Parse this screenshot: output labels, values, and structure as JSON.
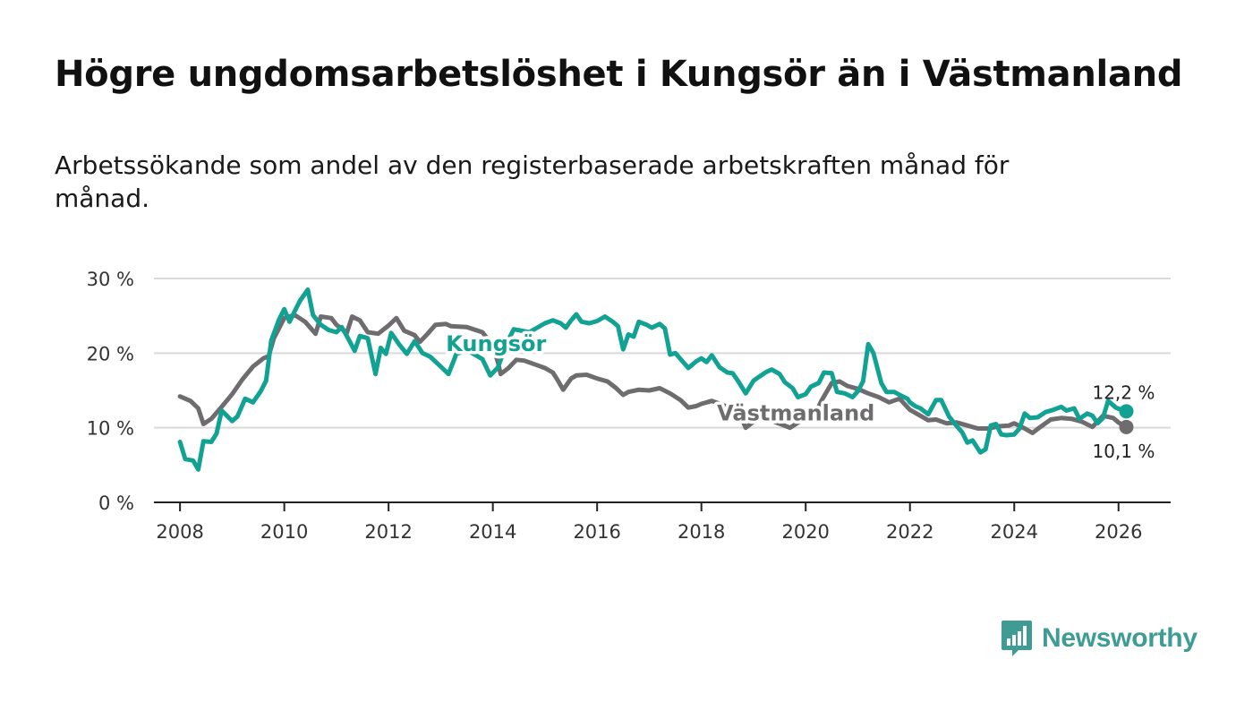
{
  "title": "Högre ungdomsarbetslöshet i Kungsör än i Västmanland",
  "subtitle": "Arbetssökande som andel av den registerbaserade arbetskraften månad för månad.",
  "brand": {
    "name": "Newsworthy",
    "logo_icon": "bar-chart-bubble-icon",
    "color": "#3e9c95"
  },
  "colors": {
    "kungsor": "#12a293",
    "vastmanland": "#6e6c6e",
    "grid": "#d9d9d9",
    "axis": "#222222"
  },
  "chart_data": {
    "type": "line",
    "title": "Högre ungdomsarbetslöshet i Kungsör än i Västmanland",
    "xlabel": "",
    "ylabel": "",
    "xlim": [
      2007.5,
      2027.0
    ],
    "ylim": [
      0,
      30
    ],
    "grid": true,
    "x_ticks": [
      2008,
      2010,
      2012,
      2014,
      2016,
      2018,
      2020,
      2022,
      2024,
      2026
    ],
    "x_tick_labels": [
      "2008",
      "2010",
      "2012",
      "2014",
      "2016",
      "2018",
      "2020",
      "2022",
      "2024",
      "2026"
    ],
    "y_ticks": [
      0,
      10,
      20,
      30
    ],
    "y_tick_labels": [
      "0 %",
      "10 %",
      "20 %",
      "30 %"
    ],
    "series": [
      {
        "name": "Västmanland",
        "end_label": "10,1 %",
        "points": [
          [
            2008.0,
            14.2
          ],
          [
            2008.2,
            13.6
          ],
          [
            2008.35,
            12.6
          ],
          [
            2008.45,
            10.5
          ],
          [
            2008.6,
            11.2
          ],
          [
            2008.8,
            12.8
          ],
          [
            2009.0,
            14.5
          ],
          [
            2009.2,
            16.5
          ],
          [
            2009.4,
            18.2
          ],
          [
            2009.6,
            19.3
          ],
          [
            2009.7,
            19.6
          ],
          [
            2009.8,
            22.0
          ],
          [
            2010.0,
            24.7
          ],
          [
            2010.2,
            25.1
          ],
          [
            2010.4,
            24.2
          ],
          [
            2010.6,
            22.6
          ],
          [
            2010.7,
            24.9
          ],
          [
            2010.9,
            24.7
          ],
          [
            2011.0,
            23.8
          ],
          [
            2011.2,
            22.7
          ],
          [
            2011.3,
            24.9
          ],
          [
            2011.45,
            24.4
          ],
          [
            2011.6,
            22.8
          ],
          [
            2011.8,
            22.6
          ],
          [
            2012.0,
            23.7
          ],
          [
            2012.15,
            24.7
          ],
          [
            2012.3,
            23.0
          ],
          [
            2012.5,
            22.4
          ],
          [
            2012.6,
            21.5
          ],
          [
            2012.75,
            22.6
          ],
          [
            2012.9,
            23.8
          ],
          [
            2013.1,
            23.9
          ],
          [
            2013.2,
            23.6
          ],
          [
            2013.5,
            23.5
          ],
          [
            2013.8,
            22.8
          ],
          [
            2014.0,
            21.0
          ],
          [
            2014.1,
            18.7
          ],
          [
            2014.15,
            17.2
          ],
          [
            2014.3,
            18.0
          ],
          [
            2014.45,
            19.1
          ],
          [
            2014.6,
            19.0
          ],
          [
            2014.8,
            18.5
          ],
          [
            2015.0,
            18.0
          ],
          [
            2015.15,
            17.4
          ],
          [
            2015.25,
            16.3
          ],
          [
            2015.35,
            15.1
          ],
          [
            2015.5,
            16.6
          ],
          [
            2015.6,
            17.0
          ],
          [
            2015.8,
            17.1
          ],
          [
            2016.0,
            16.6
          ],
          [
            2016.2,
            16.2
          ],
          [
            2016.35,
            15.4
          ],
          [
            2016.5,
            14.4
          ],
          [
            2016.6,
            14.8
          ],
          [
            2016.8,
            15.1
          ],
          [
            2017.0,
            15.0
          ],
          [
            2017.2,
            15.3
          ],
          [
            2017.4,
            14.6
          ],
          [
            2017.6,
            13.7
          ],
          [
            2017.75,
            12.7
          ],
          [
            2017.9,
            12.9
          ],
          [
            2018.0,
            13.2
          ],
          [
            2018.2,
            13.6
          ],
          [
            2018.4,
            13.1
          ],
          [
            2018.6,
            12.4
          ],
          [
            2018.75,
            11.6
          ],
          [
            2018.85,
            10.0
          ],
          [
            2019.0,
            10.8
          ],
          [
            2019.2,
            11.4
          ],
          [
            2019.4,
            10.8
          ],
          [
            2019.55,
            10.4
          ],
          [
            2019.7,
            10.0
          ],
          [
            2019.9,
            10.9
          ],
          [
            2020.0,
            11.8
          ],
          [
            2020.15,
            11.3
          ],
          [
            2020.3,
            13.6
          ],
          [
            2020.5,
            16.0
          ],
          [
            2020.65,
            16.2
          ],
          [
            2020.8,
            15.6
          ],
          [
            2021.0,
            15.2
          ],
          [
            2021.2,
            14.6
          ],
          [
            2021.4,
            14.1
          ],
          [
            2021.6,
            13.4
          ],
          [
            2021.8,
            13.9
          ],
          [
            2022.0,
            12.4
          ],
          [
            2022.2,
            11.6
          ],
          [
            2022.35,
            11.0
          ],
          [
            2022.5,
            11.1
          ],
          [
            2022.7,
            10.6
          ],
          [
            2022.9,
            10.7
          ],
          [
            2023.1,
            10.3
          ],
          [
            2023.3,
            9.9
          ],
          [
            2023.5,
            9.9
          ],
          [
            2023.7,
            10.2
          ],
          [
            2023.9,
            10.3
          ],
          [
            2024.0,
            10.6
          ],
          [
            2024.2,
            9.9
          ],
          [
            2024.35,
            9.3
          ],
          [
            2024.5,
            10.1
          ],
          [
            2024.7,
            11.1
          ],
          [
            2024.9,
            11.3
          ],
          [
            2025.1,
            11.2
          ],
          [
            2025.3,
            10.8
          ],
          [
            2025.5,
            10.1
          ],
          [
            2025.7,
            11.6
          ],
          [
            2025.9,
            11.3
          ],
          [
            2026.0,
            10.7
          ],
          [
            2026.15,
            10.1
          ]
        ]
      },
      {
        "name": "Kungsör",
        "end_label": "12,2 %",
        "points": [
          [
            2008.0,
            8.1
          ],
          [
            2008.1,
            5.8
          ],
          [
            2008.25,
            5.6
          ],
          [
            2008.35,
            4.4
          ],
          [
            2008.45,
            8.2
          ],
          [
            2008.6,
            8.1
          ],
          [
            2008.7,
            9.2
          ],
          [
            2008.8,
            12.3
          ],
          [
            2008.9,
            11.6
          ],
          [
            2009.0,
            10.9
          ],
          [
            2009.1,
            11.5
          ],
          [
            2009.25,
            13.9
          ],
          [
            2009.4,
            13.4
          ],
          [
            2009.55,
            14.9
          ],
          [
            2009.65,
            16.3
          ],
          [
            2009.75,
            21.7
          ],
          [
            2009.9,
            24.5
          ],
          [
            2010.0,
            25.9
          ],
          [
            2010.1,
            24.2
          ],
          [
            2010.3,
            27.0
          ],
          [
            2010.45,
            28.5
          ],
          [
            2010.55,
            25.1
          ],
          [
            2010.7,
            23.8
          ],
          [
            2010.85,
            23.1
          ],
          [
            2011.0,
            22.8
          ],
          [
            2011.1,
            23.5
          ],
          [
            2011.2,
            22.3
          ],
          [
            2011.35,
            20.3
          ],
          [
            2011.45,
            22.3
          ],
          [
            2011.6,
            22.0
          ],
          [
            2011.75,
            17.2
          ],
          [
            2011.85,
            20.7
          ],
          [
            2011.95,
            19.9
          ],
          [
            2012.05,
            22.7
          ],
          [
            2012.2,
            21.2
          ],
          [
            2012.35,
            19.9
          ],
          [
            2012.5,
            21.6
          ],
          [
            2012.65,
            20.0
          ],
          [
            2012.8,
            19.5
          ],
          [
            2013.0,
            18.2
          ],
          [
            2013.15,
            17.2
          ],
          [
            2013.3,
            19.9
          ],
          [
            2013.5,
            20.4
          ],
          [
            2013.65,
            19.8
          ],
          [
            2013.8,
            19.2
          ],
          [
            2013.95,
            17.0
          ],
          [
            2014.1,
            18.1
          ],
          [
            2014.25,
            21.1
          ],
          [
            2014.4,
            23.2
          ],
          [
            2014.55,
            23.0
          ],
          [
            2014.7,
            22.8
          ],
          [
            2015.0,
            24.0
          ],
          [
            2015.15,
            24.4
          ],
          [
            2015.3,
            24.0
          ],
          [
            2015.4,
            23.4
          ],
          [
            2015.5,
            24.4
          ],
          [
            2015.6,
            25.2
          ],
          [
            2015.7,
            24.2
          ],
          [
            2015.85,
            24.0
          ],
          [
            2016.0,
            24.3
          ],
          [
            2016.15,
            24.9
          ],
          [
            2016.3,
            24.2
          ],
          [
            2016.4,
            23.6
          ],
          [
            2016.5,
            20.5
          ],
          [
            2016.6,
            22.5
          ],
          [
            2016.7,
            22.2
          ],
          [
            2016.8,
            24.2
          ],
          [
            2016.95,
            23.8
          ],
          [
            2017.05,
            23.4
          ],
          [
            2017.2,
            23.9
          ],
          [
            2017.3,
            23.3
          ],
          [
            2017.4,
            19.8
          ],
          [
            2017.5,
            20.0
          ],
          [
            2017.6,
            19.2
          ],
          [
            2017.75,
            18.0
          ],
          [
            2017.9,
            18.9
          ],
          [
            2018.0,
            19.3
          ],
          [
            2018.1,
            18.8
          ],
          [
            2018.2,
            19.7
          ],
          [
            2018.35,
            18.1
          ],
          [
            2018.5,
            17.4
          ],
          [
            2018.6,
            17.3
          ],
          [
            2018.7,
            16.3
          ],
          [
            2018.85,
            14.6
          ],
          [
            2019.0,
            16.3
          ],
          [
            2019.1,
            16.8
          ],
          [
            2019.25,
            17.5
          ],
          [
            2019.35,
            17.8
          ],
          [
            2019.5,
            17.2
          ],
          [
            2019.6,
            16.1
          ],
          [
            2019.75,
            15.3
          ],
          [
            2019.85,
            14.1
          ],
          [
            2020.0,
            14.5
          ],
          [
            2020.1,
            15.5
          ],
          [
            2020.25,
            16.0
          ],
          [
            2020.35,
            17.4
          ],
          [
            2020.5,
            17.3
          ],
          [
            2020.6,
            14.8
          ],
          [
            2020.75,
            14.6
          ],
          [
            2020.9,
            14.1
          ],
          [
            2021.0,
            14.9
          ],
          [
            2021.1,
            16.2
          ],
          [
            2021.2,
            21.2
          ],
          [
            2021.3,
            20.0
          ],
          [
            2021.45,
            16.0
          ],
          [
            2021.55,
            14.8
          ],
          [
            2021.7,
            14.8
          ],
          [
            2021.8,
            14.4
          ],
          [
            2021.95,
            13.9
          ],
          [
            2022.0,
            13.4
          ],
          [
            2022.1,
            12.9
          ],
          [
            2022.2,
            12.6
          ],
          [
            2022.35,
            11.8
          ],
          [
            2022.5,
            13.7
          ],
          [
            2022.6,
            13.7
          ],
          [
            2022.75,
            11.5
          ],
          [
            2022.9,
            10.2
          ],
          [
            2023.0,
            9.4
          ],
          [
            2023.1,
            8.0
          ],
          [
            2023.2,
            8.3
          ],
          [
            2023.35,
            6.7
          ],
          [
            2023.45,
            7.1
          ],
          [
            2023.55,
            10.3
          ],
          [
            2023.65,
            10.5
          ],
          [
            2023.75,
            9.1
          ],
          [
            2023.85,
            9.0
          ],
          [
            2024.0,
            9.1
          ],
          [
            2024.1,
            9.9
          ],
          [
            2024.2,
            11.9
          ],
          [
            2024.3,
            11.3
          ],
          [
            2024.45,
            11.4
          ],
          [
            2024.6,
            12.1
          ],
          [
            2024.75,
            12.4
          ],
          [
            2024.9,
            12.8
          ],
          [
            2025.0,
            12.3
          ],
          [
            2025.15,
            12.6
          ],
          [
            2025.25,
            11.2
          ],
          [
            2025.4,
            11.9
          ],
          [
            2025.5,
            11.6
          ],
          [
            2025.6,
            10.6
          ],
          [
            2025.7,
            11.3
          ],
          [
            2025.8,
            13.6
          ],
          [
            2025.95,
            12.7
          ],
          [
            2026.05,
            12.4
          ],
          [
            2026.15,
            12.2
          ]
        ]
      }
    ]
  }
}
